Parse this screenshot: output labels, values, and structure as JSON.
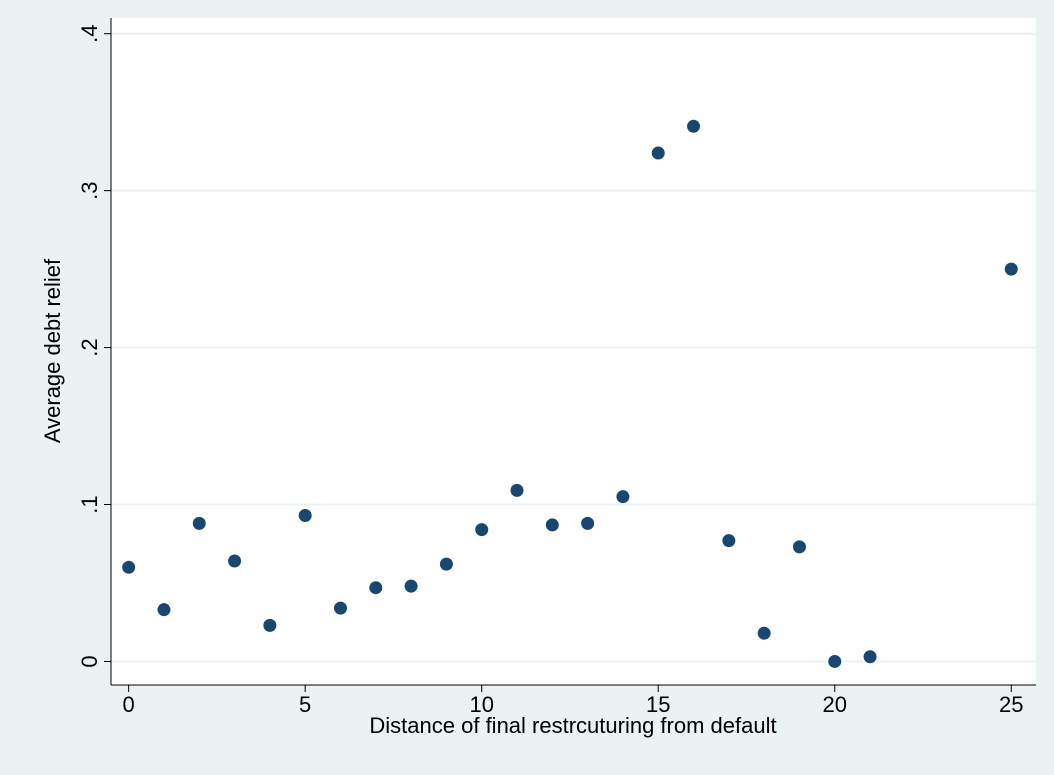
{
  "chart_data": {
    "type": "scatter",
    "xlabel": "Distance of final restrcuturing from default",
    "ylabel": "Average debt relief",
    "xlim": [
      -0.5,
      25.7
    ],
    "ylim": [
      -0.015,
      0.41
    ],
    "xticks": [
      0,
      5,
      10,
      15,
      20,
      25
    ],
    "xtick_labels": [
      "0",
      "5",
      "10",
      "15",
      "20",
      "25"
    ],
    "yticks": [
      0,
      0.1,
      0.2,
      0.3,
      0.4
    ],
    "ytick_labels": [
      "0",
      ".1",
      ".2",
      ".3",
      ".4"
    ],
    "grid": "horizontal",
    "legend": "none",
    "colors": {
      "background": "#eaf2f3",
      "plot_background": "#ffffff",
      "marker": "#1a476f",
      "grid": "#eaf2f3"
    },
    "points": [
      {
        "x": 0,
        "y": 0.06
      },
      {
        "x": 1,
        "y": 0.033
      },
      {
        "x": 2,
        "y": 0.088
      },
      {
        "x": 3,
        "y": 0.064
      },
      {
        "x": 4,
        "y": 0.023
      },
      {
        "x": 5,
        "y": 0.093
      },
      {
        "x": 6,
        "y": 0.034
      },
      {
        "x": 7,
        "y": 0.047
      },
      {
        "x": 8,
        "y": 0.048
      },
      {
        "x": 9,
        "y": 0.062
      },
      {
        "x": 10,
        "y": 0.084
      },
      {
        "x": 11,
        "y": 0.109
      },
      {
        "x": 12,
        "y": 0.087
      },
      {
        "x": 13,
        "y": 0.088
      },
      {
        "x": 14,
        "y": 0.105
      },
      {
        "x": 15,
        "y": 0.324
      },
      {
        "x": 16,
        "y": 0.341
      },
      {
        "x": 17,
        "y": 0.077
      },
      {
        "x": 18,
        "y": 0.018
      },
      {
        "x": 19,
        "y": 0.073
      },
      {
        "x": 20,
        "y": 0.0
      },
      {
        "x": 21,
        "y": 0.003
      },
      {
        "x": 25,
        "y": 0.25
      }
    ]
  }
}
